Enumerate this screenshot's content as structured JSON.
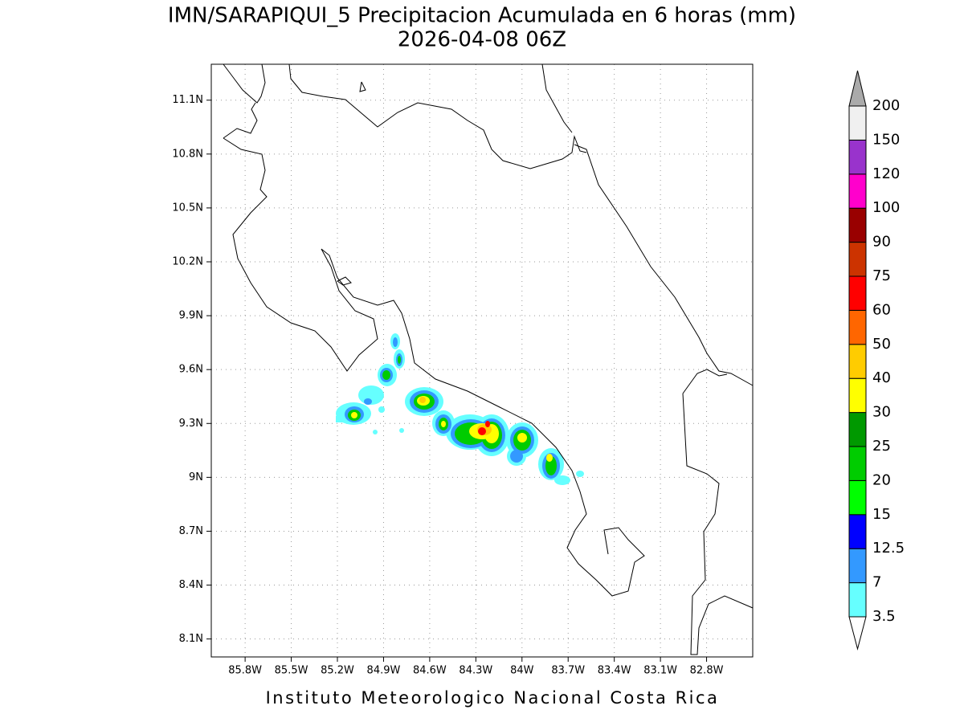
{
  "title": "IMN/SARAPIQUI_5 Precipitacion Acumulada en 6 horas (mm)",
  "subtitle": "2026-04-08 06Z",
  "footer": "Instituto Meteorologico Nacional Costa Rica",
  "map": {
    "xlim": [
      -86.02,
      -82.5
    ],
    "ylim": [
      8.0,
      11.3
    ],
    "xticks": [
      {
        "value": -85.8,
        "label": "85.8W"
      },
      {
        "value": -85.5,
        "label": "85.5W"
      },
      {
        "value": -85.2,
        "label": "85.2W"
      },
      {
        "value": -84.9,
        "label": "84.9W"
      },
      {
        "value": -84.6,
        "label": "84.6W"
      },
      {
        "value": -84.3,
        "label": "84.3W"
      },
      {
        "value": -84.0,
        "label": "84W"
      },
      {
        "value": -83.7,
        "label": "83.7W"
      },
      {
        "value": -83.4,
        "label": "83.4W"
      },
      {
        "value": -83.1,
        "label": "83.1W"
      },
      {
        "value": -82.8,
        "label": "82.8W"
      }
    ],
    "yticks": [
      {
        "value": 8.1,
        "label": "8.1N"
      },
      {
        "value": 8.4,
        "label": "8.4N"
      },
      {
        "value": 8.7,
        "label": "8.7N"
      },
      {
        "value": 9.0,
        "label": "9N"
      },
      {
        "value": 9.3,
        "label": "9.3N"
      },
      {
        "value": 9.6,
        "label": "9.6N"
      },
      {
        "value": 9.9,
        "label": "9.9N"
      },
      {
        "value": 10.2,
        "label": "10.2N"
      },
      {
        "value": 10.5,
        "label": "10.5N"
      },
      {
        "value": 10.8,
        "label": "10.8N"
      },
      {
        "value": 11.1,
        "label": "11.1N"
      }
    ],
    "grid": true
  },
  "colorbar": {
    "levels": [
      3.5,
      7,
      12.5,
      15,
      20,
      25,
      30,
      40,
      50,
      60,
      75,
      90,
      100,
      120,
      150,
      200
    ],
    "colors": [
      "#ffffff",
      "#66ffff",
      "#3399ff",
      "#0000ff",
      "#00ff00",
      "#00cc00",
      "#009900",
      "#ffff00",
      "#ffcc00",
      "#ff6600",
      "#ff0000",
      "#cc3300",
      "#990000",
      "#ff00cc",
      "#9933cc",
      "#f0f0f0",
      "#aaaaaa"
    ]
  }
}
